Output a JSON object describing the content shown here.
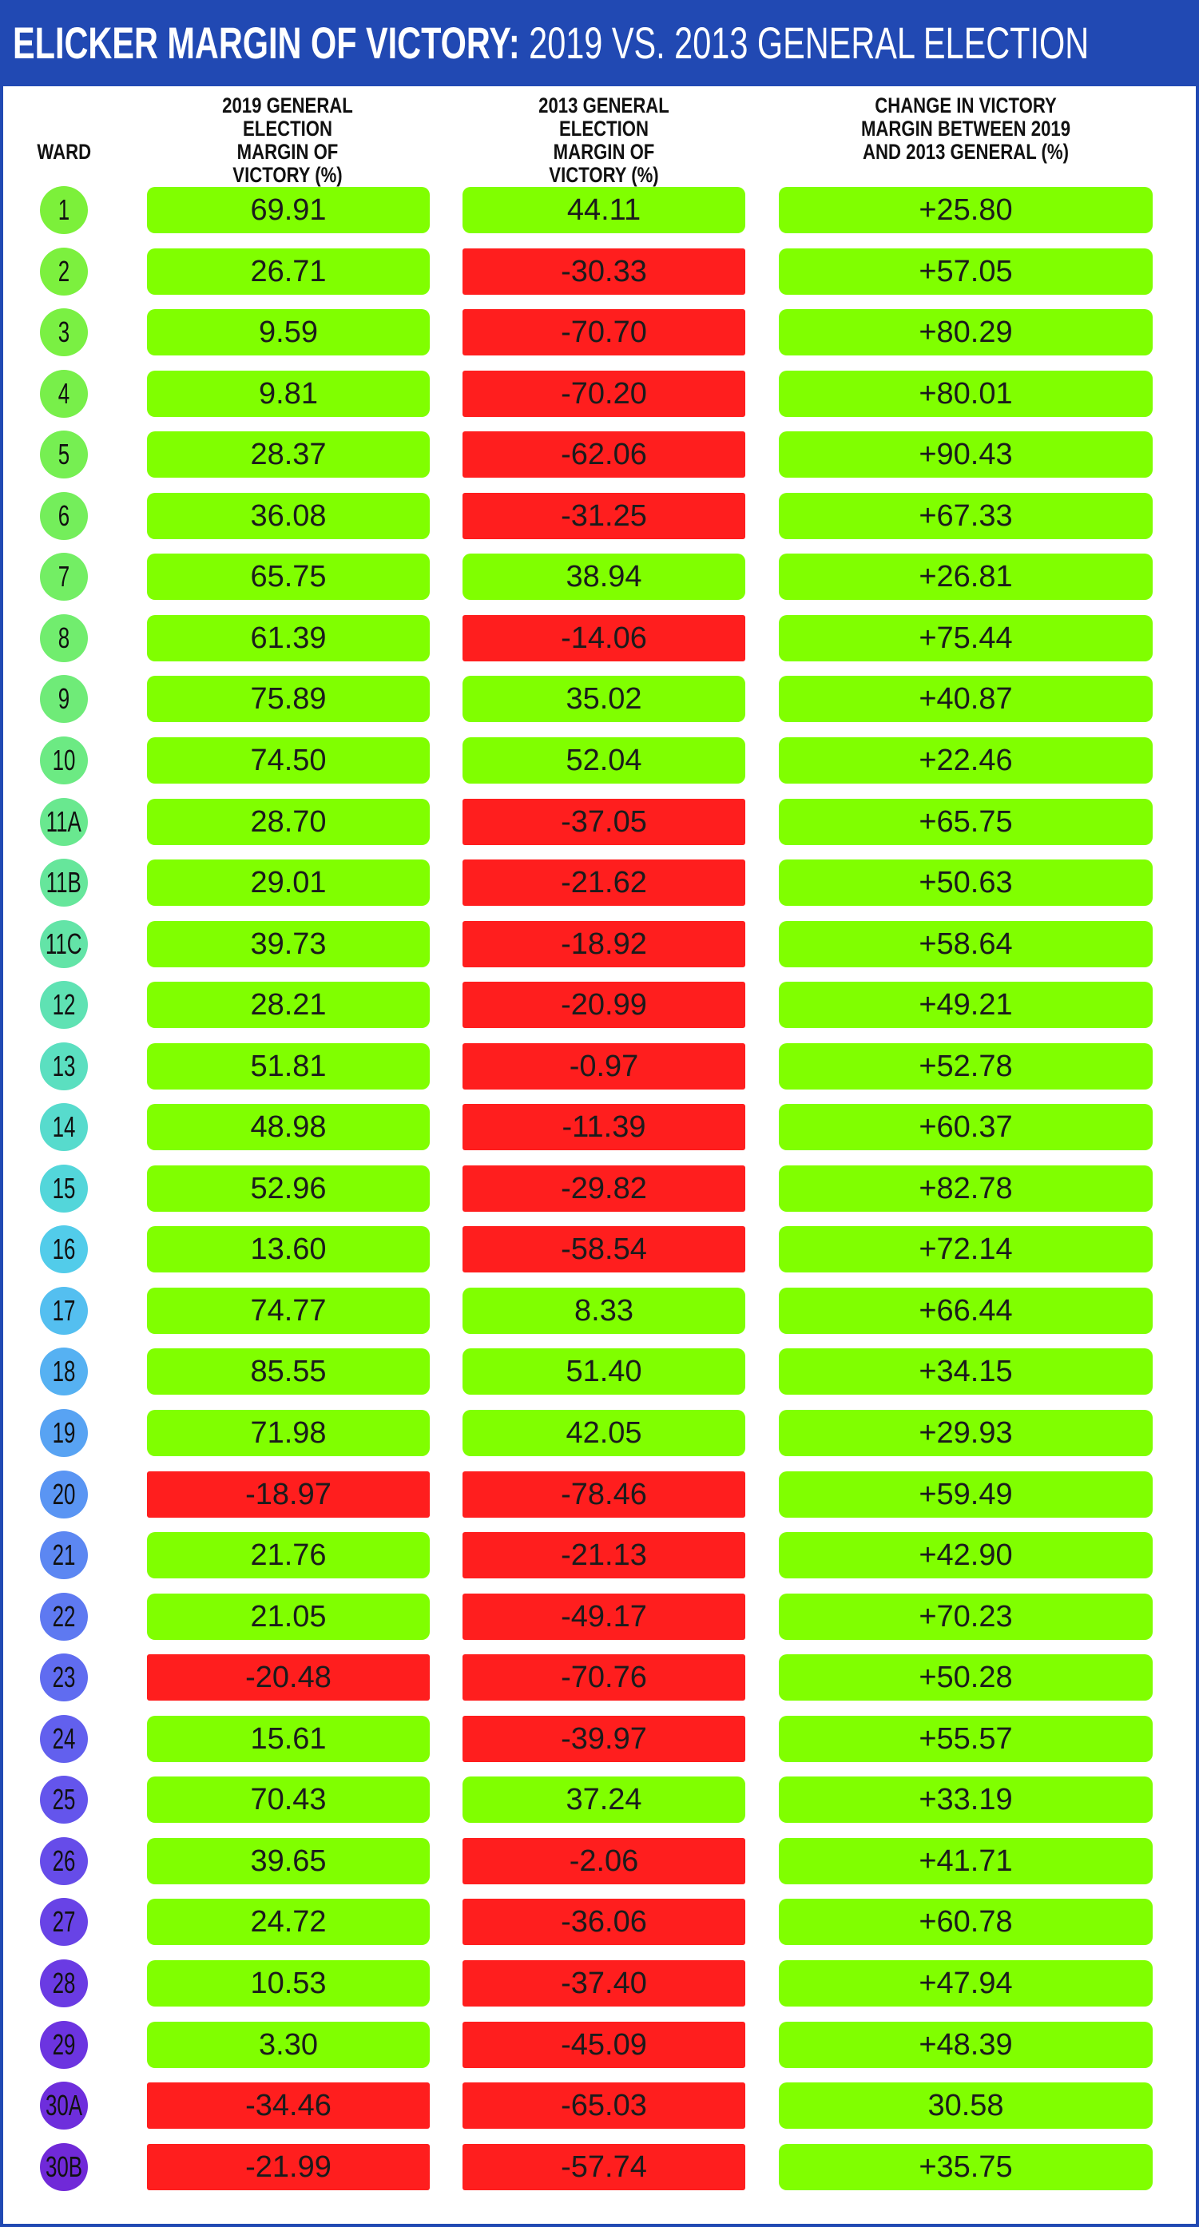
{
  "colors": {
    "frame_blue": "#2149b3",
    "positive_green": "#80ff00",
    "negative_red": "#ff1e1e"
  },
  "chart_data": {
    "type": "table",
    "title": "ELICKER MARGIN OF VICTORY:",
    "subtitle": "2019 VS. 2013 GENERAL ELECTION",
    "columns": [
      "WARD",
      "2019 GENERAL ELECTION MARGIN OF VICTORY (%)",
      "2013 GENERAL ELECTION MARGIN OF VICTORY (%)",
      "CHANGE IN VICTORY MARGIN BETWEEN 2019 AND 2013 GENERAL (%)"
    ],
    "rows": [
      {
        "ward": "1",
        "m2019": "69.91",
        "m2013": "44.11",
        "change": "+25.80",
        "ward_color": "#7cf03a"
      },
      {
        "ward": "2",
        "m2019": "26.71",
        "m2013": "-30.33",
        "change": "+57.05",
        "ward_color": "#7cf03e"
      },
      {
        "ward": "3",
        "m2019": "9.59",
        "m2013": "-70.70",
        "change": "+80.29",
        "ward_color": "#7af043"
      },
      {
        "ward": "4",
        "m2019": "9.81",
        "m2013": "-70.20",
        "change": "+80.01",
        "ward_color": "#78ef4a"
      },
      {
        "ward": "5",
        "m2019": "28.37",
        "m2013": "-62.06",
        "change": "+90.43",
        "ward_color": "#76ef52"
      },
      {
        "ward": "6",
        "m2019": "36.08",
        "m2013": "-31.25",
        "change": "+67.33",
        "ward_color": "#74ee5b"
      },
      {
        "ward": "7",
        "m2019": "65.75",
        "m2013": "38.94",
        "change": "+26.81",
        "ward_color": "#73ee64"
      },
      {
        "ward": "8",
        "m2019": "61.39",
        "m2013": "-14.06",
        "change": "+75.44",
        "ward_color": "#71ed6e"
      },
      {
        "ward": "9",
        "m2019": "75.89",
        "m2013": "35.02",
        "change": "+40.87",
        "ward_color": "#6feb78"
      },
      {
        "ward": "10",
        "m2019": "74.50",
        "m2013": "52.04",
        "change": "+22.46",
        "ward_color": "#6cea83"
      },
      {
        "ward": "11A",
        "m2019": "28.70",
        "m2013": "-37.05",
        "change": "+65.75",
        "ward_color": "#69e88f"
      },
      {
        "ward": "11B",
        "m2019": "29.01",
        "m2013": "-21.62",
        "change": "+50.63",
        "ward_color": "#66e69b"
      },
      {
        "ward": "11C",
        "m2019": "39.73",
        "m2013": "-18.92",
        "change": "+58.64",
        "ward_color": "#63e4a7"
      },
      {
        "ward": "12",
        "m2019": "28.21",
        "m2013": "-20.99",
        "change": "+49.21",
        "ward_color": "#5fe2b3"
      },
      {
        "ward": "13",
        "m2019": "51.81",
        "m2013": "-0.97",
        "change": "+52.78",
        "ward_color": "#5bdfc0"
      },
      {
        "ward": "14",
        "m2019": "48.98",
        "m2013": "-11.39",
        "change": "+60.37",
        "ward_color": "#57dbcd"
      },
      {
        "ward": "15",
        "m2019": "52.96",
        "m2013": "-29.82",
        "change": "+82.78",
        "ward_color": "#53d6da"
      },
      {
        "ward": "16",
        "m2019": "13.60",
        "m2013": "-58.54",
        "change": "+72.14",
        "ward_color": "#52ccea"
      },
      {
        "ward": "17",
        "m2019": "74.77",
        "m2013": "8.33",
        "change": "+66.44",
        "ward_color": "#54bff0"
      },
      {
        "ward": "18",
        "m2019": "85.55",
        "m2013": "51.40",
        "change": "+34.15",
        "ward_color": "#56b1f2"
      },
      {
        "ward": "19",
        "m2019": "71.98",
        "m2013": "42.05",
        "change": "+29.93",
        "ward_color": "#58a3f3"
      },
      {
        "ward": "20",
        "m2019": "-18.97",
        "m2013": "-78.46",
        "change": "+59.49",
        "ward_color": "#5a95f3"
      },
      {
        "ward": "21",
        "m2019": "21.76",
        "m2013": "-21.13",
        "change": "+42.90",
        "ward_color": "#5c87f2"
      },
      {
        "ward": "22",
        "m2019": "21.05",
        "m2013": "-49.17",
        "change": "+70.23",
        "ward_color": "#5e79f1"
      },
      {
        "ward": "23",
        "m2019": "-20.48",
        "m2013": "-70.76",
        "change": "+50.28",
        "ward_color": "#606cf0"
      },
      {
        "ward": "24",
        "m2019": "15.61",
        "m2013": "-39.97",
        "change": "+55.57",
        "ward_color": "#6260ee"
      },
      {
        "ward": "25",
        "m2019": "70.43",
        "m2013": "37.24",
        "change": "+33.19",
        "ward_color": "#6455ec"
      },
      {
        "ward": "26",
        "m2019": "39.65",
        "m2013": "-2.06",
        "change": "+41.71",
        "ward_color": "#664ce9"
      },
      {
        "ward": "27",
        "m2019": "24.72",
        "m2013": "-36.06",
        "change": "+60.78",
        "ward_color": "#6843e6"
      },
      {
        "ward": "28",
        "m2019": "10.53",
        "m2013": "-37.40",
        "change": "+47.94",
        "ward_color": "#6a3be3"
      },
      {
        "ward": "29",
        "m2019": "3.30",
        "m2013": "-45.09",
        "change": "+48.39",
        "ward_color": "#6c34e0"
      },
      {
        "ward": "30A",
        "m2019": "-34.46",
        "m2013": "-65.03",
        "change": "30.58",
        "ward_color": "#6e2edc"
      },
      {
        "ward": "30B",
        "m2019": "-21.99",
        "m2013": "-57.74",
        "change": "+35.75",
        "ward_color": "#7029d8"
      }
    ]
  }
}
